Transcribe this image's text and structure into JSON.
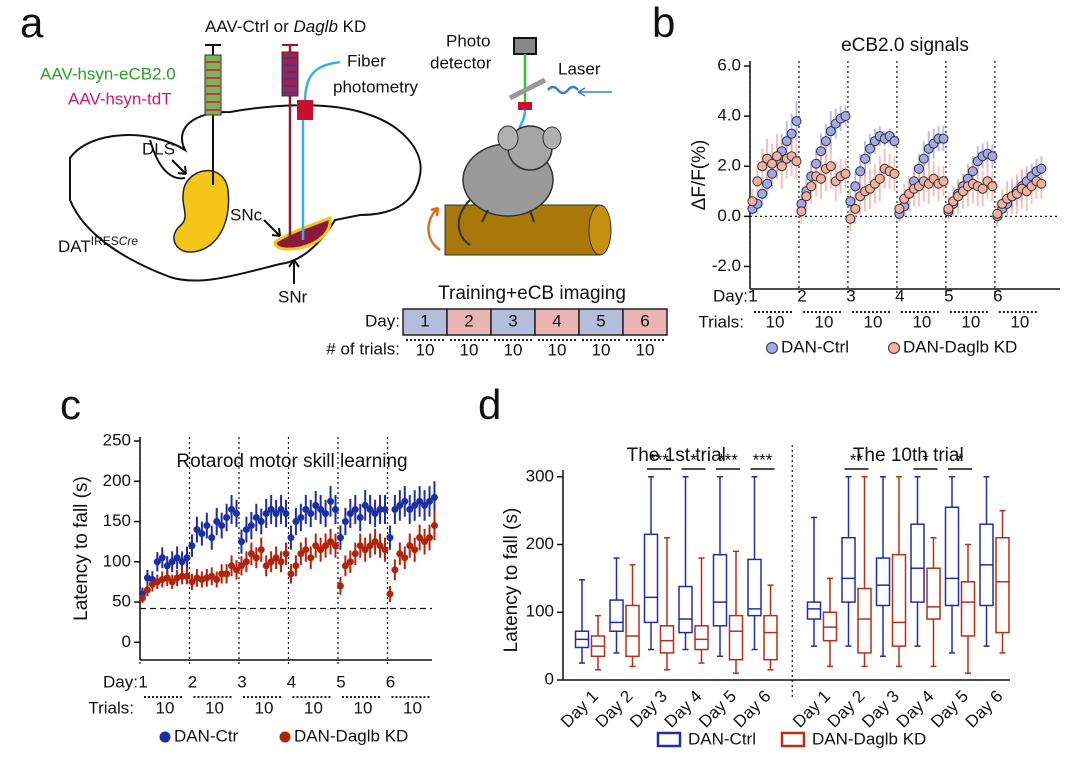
{
  "panel_labels": [
    "a",
    "b",
    "c",
    "d"
  ],
  "panel_a": {
    "vector_parts": [
      "AAV-Ctrl or ",
      "Daglb",
      " KD"
    ],
    "sensor": "AAV-hsyn-eCB2.0",
    "tdt": "AAV-hsyn-tdT",
    "fiber": [
      "Fiber",
      "photometry"
    ],
    "dls": "DLS",
    "snc": "SNc",
    "snr": "SNr",
    "mouse_line": [
      "DAT",
      "IRES",
      "Cre"
    ],
    "detector": [
      "Photo",
      "detector"
    ],
    "laser": "Laser",
    "schedule": {
      "title": "Training+eCB imaging",
      "day_label": "Day:",
      "days": [
        "1",
        "2",
        "3",
        "4",
        "5",
        "6"
      ],
      "trials_label": "# of trials:",
      "trials": [
        "10",
        "10",
        "10",
        "10",
        "10",
        "10"
      ],
      "colors": [
        "#b4bddc",
        "#e8b4b4"
      ]
    }
  },
  "chart_data": [
    {
      "type": "scatter",
      "title": "eCB2.0 signals",
      "ylabel": "ΔF/F(%)",
      "day_prefix": "Day:",
      "trials_prefix": "Trials:",
      "x": [
        1,
        2,
        3,
        4,
        5,
        6,
        7,
        8,
        9,
        10,
        11,
        12,
        13,
        14,
        15,
        16,
        17,
        18,
        19,
        20,
        21,
        22,
        23,
        24,
        25,
        26,
        27,
        28,
        29,
        30,
        31,
        32,
        33,
        34,
        35,
        36,
        37,
        38,
        39,
        40,
        41,
        42,
        43,
        44,
        45,
        46,
        47,
        48,
        49,
        50,
        51,
        52,
        53,
        54,
        55,
        56,
        57,
        58,
        59,
        60
      ],
      "xlim": [
        0.5,
        63.8
      ],
      "xticks": [
        {
          "value": 0.5,
          "label": "1"
        },
        {
          "value": 10.5,
          "label": "2"
        },
        {
          "value": 20.5,
          "label": "3"
        },
        {
          "value": 30.5,
          "label": "4"
        },
        {
          "value": 40.5,
          "label": "5"
        },
        {
          "value": 50.5,
          "label": "6"
        }
      ],
      "trial_labels": [
        "10",
        "10",
        "10",
        "10",
        "10",
        "10"
      ],
      "ylim": [
        -2.9,
        6.2
      ],
      "yticks": [
        {
          "value": -2,
          "label": "-2.0"
        },
        {
          "value": 0,
          "label": "0.0"
        },
        {
          "value": 2,
          "label": "2.0"
        },
        {
          "value": 4,
          "label": "4.0"
        },
        {
          "value": 6,
          "label": "6.0"
        }
      ],
      "reference_line": 0,
      "reference_style": "dotted",
      "series": [
        {
          "name": "DAN-Ctrl",
          "color": "#a4a8e8",
          "values": [
            0.3,
            0.5,
            0.9,
            1.3,
            1.7,
            2.2,
            2.6,
            3.0,
            3.3,
            3.8,
            0.5,
            1.0,
            1.6,
            2.1,
            2.6,
            3.0,
            3.4,
            3.7,
            3.9,
            4.0,
            0.6,
            1.2,
            1.8,
            2.3,
            2.7,
            3.0,
            3.2,
            3.1,
            3.2,
            3.0,
            0.1,
            0.4,
            0.9,
            1.4,
            1.9,
            2.3,
            2.7,
            2.9,
            3.1,
            3.1,
            0.2,
            0.5,
            0.9,
            1.2,
            1.5,
            1.8,
            2.2,
            2.4,
            2.5,
            2.4,
            0.0,
            0.3,
            0.5,
            0.8,
            1.0,
            1.2,
            1.4,
            1.6,
            1.8,
            1.9
          ],
          "errors": [
            0.3,
            0.4,
            0.5,
            0.5,
            0.6,
            0.7,
            0.7,
            0.8,
            0.8,
            0.8,
            0.4,
            0.5,
            0.6,
            0.6,
            0.7,
            0.7,
            0.8,
            0.6,
            0.5,
            0.4,
            0.5,
            0.6,
            0.7,
            0.7,
            0.6,
            0.5,
            0.4,
            0.3,
            0.3,
            0.3,
            0.3,
            0.4,
            0.5,
            0.6,
            0.6,
            0.7,
            0.7,
            0.6,
            0.5,
            0.5,
            0.3,
            0.4,
            0.5,
            0.5,
            0.6,
            0.6,
            0.6,
            0.5,
            0.5,
            0.5,
            0.3,
            0.4,
            0.5,
            0.5,
            0.6,
            0.6,
            0.6,
            0.5,
            0.5,
            0.5
          ]
        },
        {
          "name": "DAN-Daglb KD",
          "color": "#f2b0a0",
          "values": [
            0.6,
            1.4,
            2.0,
            2.3,
            2.1,
            2.4,
            2.0,
            2.3,
            2.4,
            2.2,
            0.2,
            0.8,
            1.2,
            1.6,
            1.5,
            1.9,
            2.0,
            1.4,
            1.6,
            1.7,
            -0.1,
            0.3,
            0.8,
            1.0,
            1.1,
            1.3,
            1.5,
            1.9,
            1.8,
            1.7,
            0.3,
            0.7,
            0.9,
            1.1,
            1.2,
            1.4,
            1.3,
            1.5,
            1.3,
            1.4,
            0.3,
            0.6,
            0.8,
            1.0,
            1.2,
            1.3,
            1.2,
            1.1,
            1.4,
            1.2,
            0.1,
            0.5,
            0.7,
            0.8,
            0.9,
            1.1,
            1.0,
            1.2,
            1.4,
            1.3
          ],
          "errors": [
            0.5,
            0.6,
            0.7,
            0.8,
            0.8,
            0.9,
            0.9,
            0.8,
            0.8,
            0.7,
            0.5,
            0.6,
            0.7,
            0.8,
            0.8,
            0.9,
            0.9,
            0.8,
            0.7,
            0.6,
            0.5,
            0.6,
            0.7,
            0.8,
            0.8,
            0.8,
            0.9,
            0.8,
            0.7,
            0.7,
            0.5,
            0.6,
            0.7,
            0.7,
            0.8,
            0.8,
            0.8,
            0.7,
            0.7,
            0.6,
            0.5,
            0.6,
            0.7,
            0.7,
            0.8,
            0.8,
            0.8,
            0.7,
            0.7,
            0.6,
            0.5,
            0.6,
            0.7,
            0.7,
            0.8,
            0.8,
            0.8,
            0.7,
            0.7,
            0.6
          ]
        }
      ]
    },
    {
      "type": "scatter",
      "title": "Rotarod motor skill learning",
      "ylabel": "Latency to fall (s)",
      "day_prefix": "Day:",
      "trials_prefix": "Trials:",
      "x": [
        1,
        2,
        3,
        4,
        5,
        6,
        7,
        8,
        9,
        10,
        11,
        12,
        13,
        14,
        15,
        16,
        17,
        18,
        19,
        20,
        21,
        22,
        23,
        24,
        25,
        26,
        27,
        28,
        29,
        30,
        31,
        32,
        33,
        34,
        35,
        36,
        37,
        38,
        39,
        40,
        41,
        42,
        43,
        44,
        45,
        46,
        47,
        48,
        49,
        50,
        51,
        52,
        53,
        54,
        55,
        56,
        57,
        58,
        59,
        60
      ],
      "xlim": [
        0.5,
        59.5
      ],
      "xticks": [
        {
          "value": 0.5,
          "label": "1"
        },
        {
          "value": 10.5,
          "label": "2"
        },
        {
          "value": 20.5,
          "label": "3"
        },
        {
          "value": 30.5,
          "label": "4"
        },
        {
          "value": 40.5,
          "label": "5"
        },
        {
          "value": 50.5,
          "label": "6"
        }
      ],
      "trial_labels": [
        "10",
        "10",
        "10",
        "10",
        "10",
        "10"
      ],
      "ylim": [
        -22,
        255
      ],
      "yticks": [
        0,
        50,
        100,
        150,
        200,
        250
      ],
      "reference_line": 42,
      "reference_style": "dashed",
      "series": [
        {
          "name": "DAN-Ctr",
          "color": "#1c2ea0",
          "values": [
            60,
            80,
            78,
            100,
            105,
            95,
            100,
            105,
            100,
            105,
            120,
            140,
            135,
            145,
            130,
            150,
            145,
            155,
            165,
            160,
            125,
            140,
            145,
            155,
            150,
            160,
            165,
            160,
            165,
            160,
            130,
            150,
            155,
            165,
            160,
            170,
            165,
            160,
            175,
            165,
            130,
            150,
            160,
            165,
            155,
            170,
            165,
            160,
            165,
            165,
            130,
            165,
            170,
            175,
            165,
            170,
            175,
            170,
            175,
            180
          ],
          "errors": [
            8,
            10,
            10,
            12,
            13,
            12,
            13,
            14,
            13,
            14,
            14,
            16,
            15,
            16,
            15,
            17,
            16,
            17,
            18,
            17,
            15,
            16,
            17,
            17,
            16,
            18,
            18,
            17,
            18,
            17,
            15,
            17,
            17,
            18,
            17,
            18,
            18,
            17,
            19,
            18,
            15,
            17,
            18,
            18,
            17,
            19,
            18,
            17,
            18,
            18,
            15,
            18,
            19,
            19,
            18,
            19,
            19,
            19,
            19,
            20
          ]
        },
        {
          "name": "DAN-Daglb KD",
          "color": "#b0240c",
          "values": [
            55,
            65,
            72,
            75,
            78,
            80,
            75,
            80,
            82,
            82,
            75,
            80,
            78,
            80,
            82,
            78,
            85,
            85,
            95,
            90,
            95,
            100,
            110,
            105,
            115,
            95,
            100,
            105,
            100,
            110,
            85,
            95,
            110,
            115,
            105,
            120,
            115,
            120,
            125,
            120,
            70,
            95,
            100,
            110,
            120,
            115,
            120,
            125,
            120,
            115,
            60,
            90,
            110,
            105,
            120,
            115,
            130,
            125,
            130,
            145
          ],
          "errors": [
            6,
            8,
            9,
            9,
            10,
            10,
            9,
            10,
            10,
            10,
            10,
            11,
            10,
            11,
            11,
            10,
            12,
            12,
            13,
            12,
            12,
            13,
            14,
            13,
            15,
            13,
            13,
            14,
            13,
            14,
            12,
            13,
            14,
            15,
            14,
            15,
            15,
            15,
            16,
            15,
            11,
            13,
            14,
            14,
            15,
            15,
            15,
            16,
            15,
            15,
            10,
            13,
            14,
            14,
            15,
            15,
            16,
            16,
            16,
            18
          ]
        }
      ]
    },
    {
      "type": "box",
      "ylabel": "Latency to fall (s)",
      "group_titles": [
        "The 1st trial",
        "The 10th trial"
      ],
      "categories": [
        "Day 1",
        "Day 2",
        "Day 3",
        "Day 4",
        "Day 5",
        "Day 6",
        "Day 1",
        "Day 2",
        "Day 3",
        "Day 4",
        "Day 5",
        "Day 6"
      ],
      "ylim": [
        0,
        310
      ],
      "yticks": [
        0,
        100,
        200,
        300
      ],
      "significance": [
        null,
        null,
        "***",
        "*",
        "***",
        "***",
        null,
        "**",
        null,
        "*",
        "*",
        null
      ],
      "series": [
        {
          "name": "DAN-Ctrl",
          "color": "#1f2fa8",
          "boxes": [
            [
              25,
              48,
              60,
              72,
              148
            ],
            [
              40,
              72,
              85,
              118,
              180
            ],
            [
              45,
              85,
              122,
              215,
              300
            ],
            [
              45,
              70,
              90,
              138,
              300
            ],
            [
              35,
              80,
              115,
              185,
              300
            ],
            [
              45,
              95,
              105,
              178,
              300
            ],
            [
              50,
              90,
              105,
              115,
              240
            ],
            [
              50,
              115,
              150,
              210,
              300
            ],
            [
              35,
              110,
              140,
              180,
              300
            ],
            [
              50,
              115,
              165,
              230,
              300
            ],
            [
              40,
              110,
              150,
              255,
              300
            ],
            [
              50,
              110,
              170,
              230,
              300
            ]
          ]
        },
        {
          "name": "DAN-Daglb KD",
          "color": "#b3301a",
          "boxes": [
            [
              15,
              35,
              50,
              65,
              95
            ],
            [
              20,
              35,
              65,
              110,
              170
            ],
            [
              15,
              40,
              58,
              80,
              210
            ],
            [
              25,
              45,
              60,
              80,
              180
            ],
            [
              10,
              30,
              72,
              95,
              190
            ],
            [
              15,
              30,
              70,
              95,
              140
            ],
            [
              20,
              58,
              78,
              100,
              150
            ],
            [
              20,
              40,
              90,
              135,
              300
            ],
            [
              20,
              50,
              85,
              185,
              300
            ],
            [
              20,
              90,
              108,
              165,
              210
            ],
            [
              10,
              65,
              115,
              145,
              200
            ],
            [
              40,
              70,
              145,
              210,
              250
            ]
          ]
        }
      ]
    }
  ]
}
